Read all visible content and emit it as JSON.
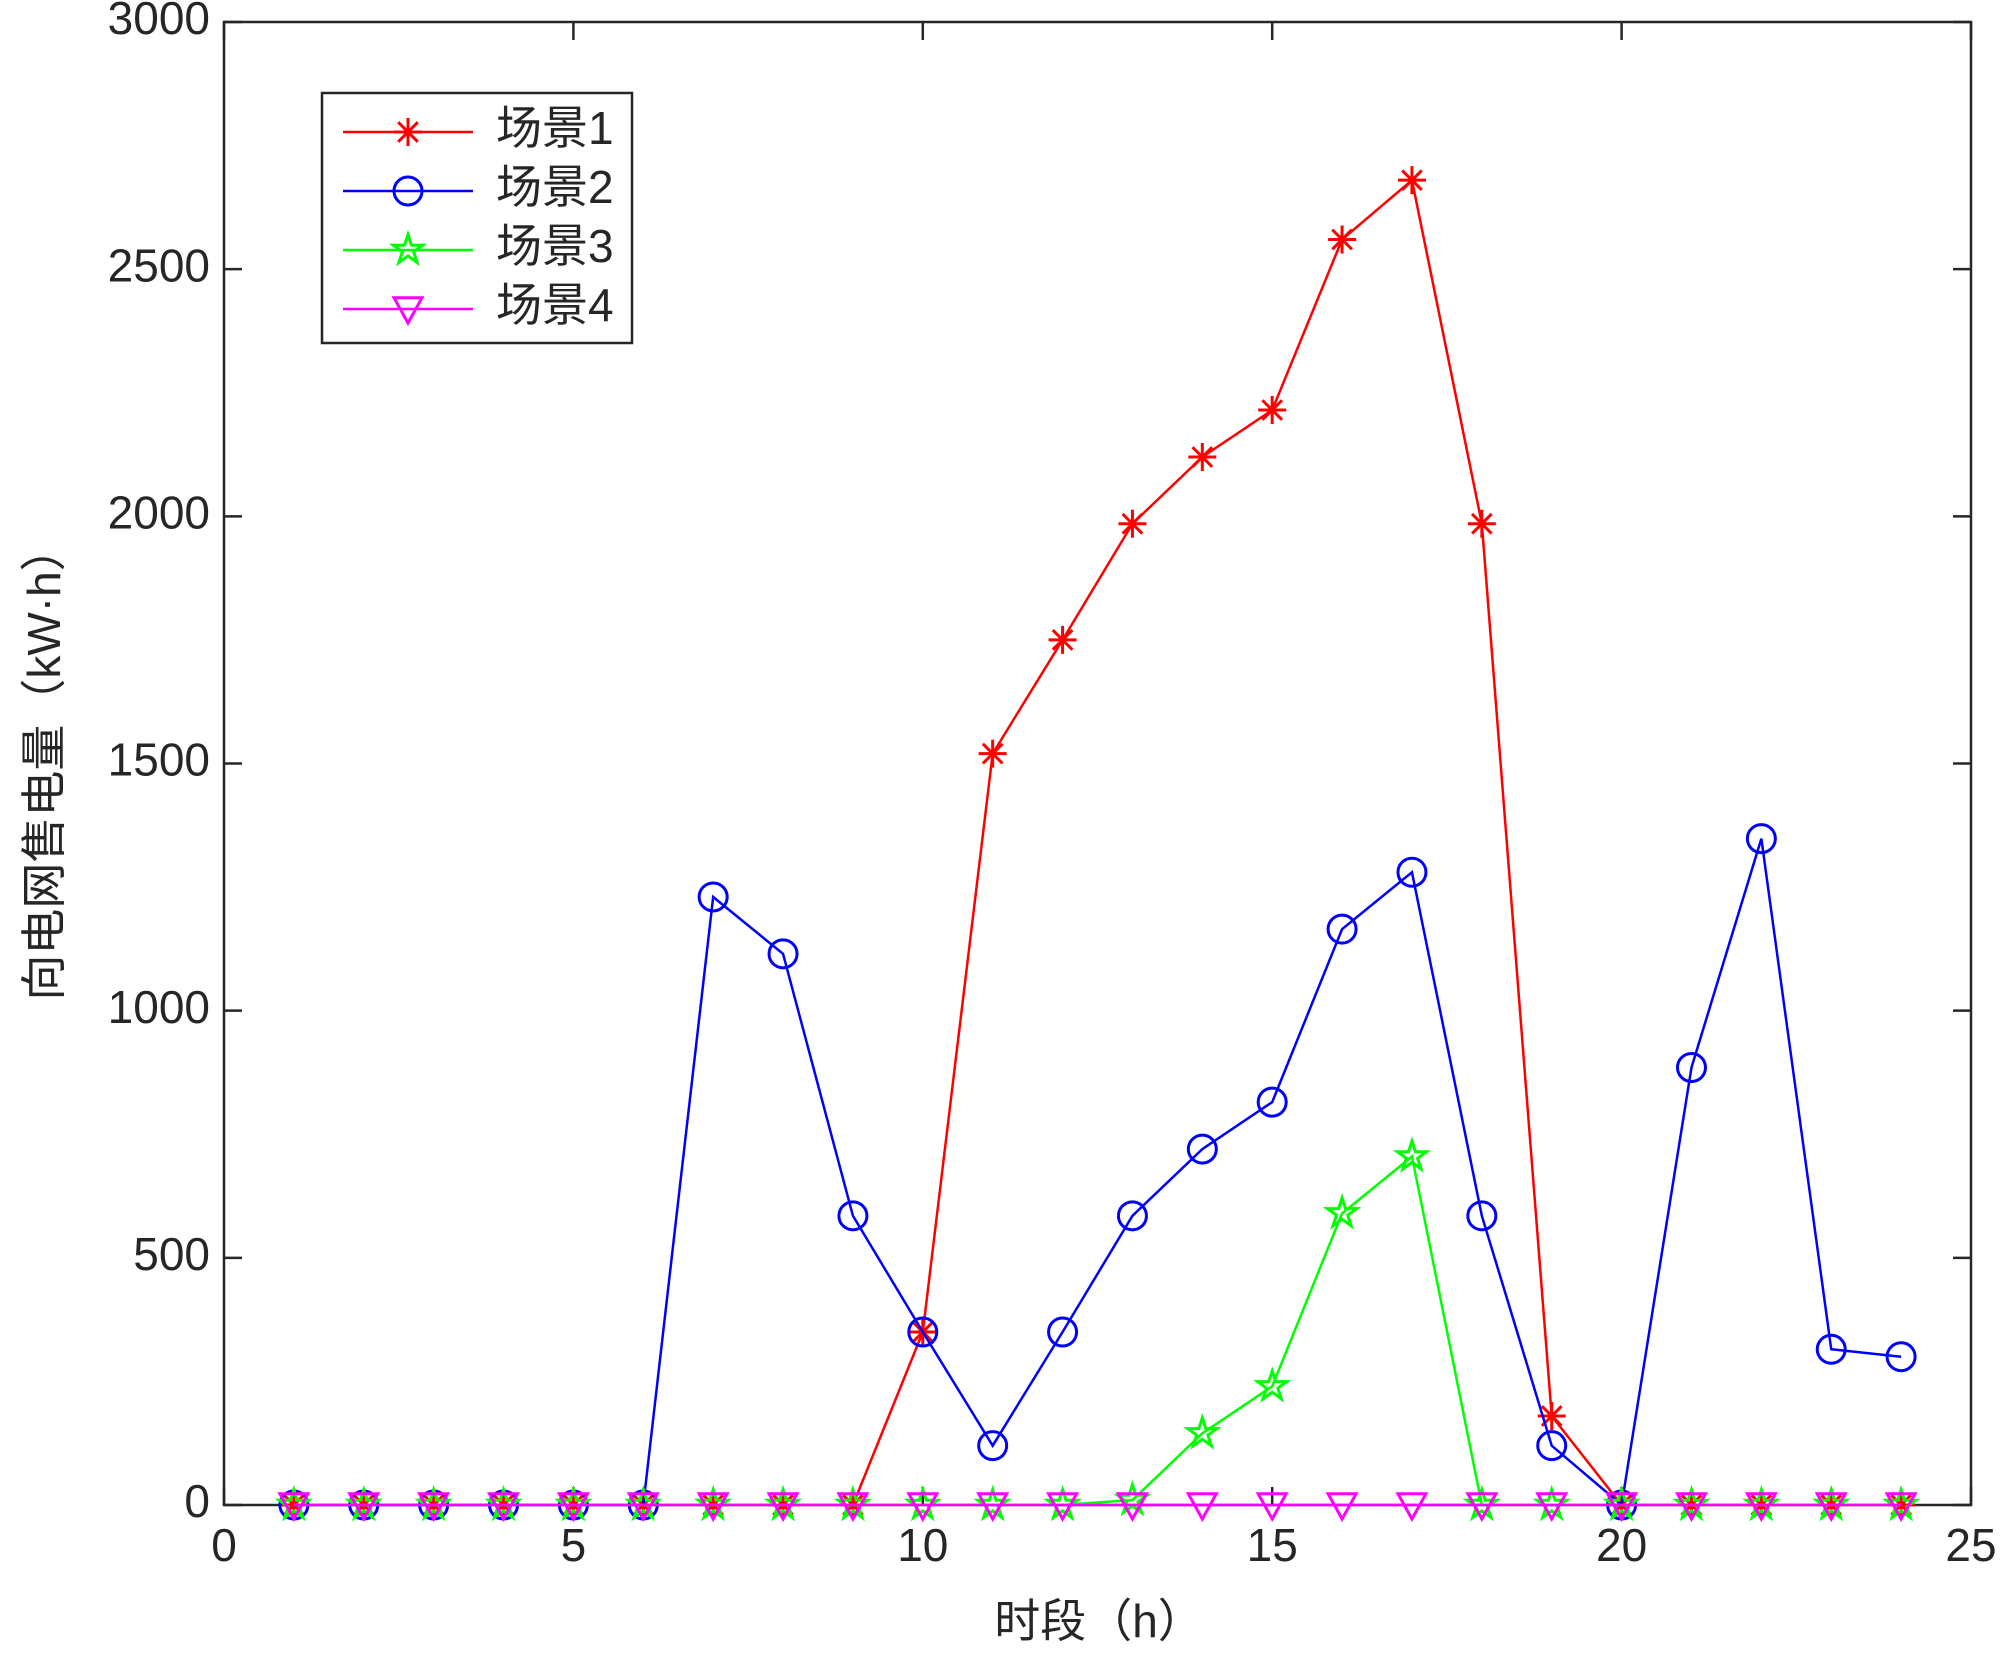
{
  "chart_data": {
    "type": "line",
    "x_label": "时段（h）",
    "y_label": "向电网售电量（kW·h）",
    "x": [
      1,
      2,
      3,
      4,
      5,
      6,
      7,
      8,
      9,
      10,
      11,
      12,
      13,
      14,
      15,
      16,
      17,
      18,
      19,
      20,
      21,
      22,
      23,
      24
    ],
    "series": [
      {
        "name": "场景1",
        "color": "#ff0000",
        "marker": "asterisk",
        "values": [
          0,
          0,
          0,
          0,
          0,
          0,
          0,
          0,
          0,
          350,
          1520,
          1750,
          1985,
          2120,
          2215,
          2560,
          2680,
          1985,
          180,
          0,
          0,
          0,
          0,
          0
        ]
      },
      {
        "name": "场景2",
        "color": "#0000ff",
        "marker": "circle",
        "values": [
          0,
          0,
          0,
          0,
          0,
          0,
          1230,
          1115,
          585,
          350,
          120,
          350,
          585,
          720,
          815,
          1165,
          1280,
          585,
          120,
          0,
          885,
          1348,
          315,
          300
        ]
      },
      {
        "name": "场景3",
        "color": "#00ff00",
        "marker": "pentagram",
        "values": [
          0,
          0,
          0,
          0,
          0,
          0,
          0,
          0,
          0,
          0,
          0,
          0,
          10,
          145,
          240,
          590,
          705,
          0,
          0,
          0,
          0,
          0,
          0,
          0
        ]
      },
      {
        "name": "场景4",
        "color": "#ff00ff",
        "marker": "triangle-down",
        "values": [
          0,
          0,
          0,
          0,
          0,
          0,
          0,
          0,
          0,
          0,
          0,
          0,
          0,
          0,
          0,
          0,
          0,
          0,
          0,
          0,
          0,
          0,
          0,
          0
        ]
      }
    ],
    "xlim": [
      0,
      25
    ],
    "xticks": [
      0,
      5,
      10,
      15,
      20,
      25
    ],
    "ylim": [
      0,
      3000
    ],
    "yticks": [
      0,
      500,
      1000,
      1500,
      2000,
      2500,
      3000
    ],
    "legend": "northwest",
    "grid": false
  }
}
